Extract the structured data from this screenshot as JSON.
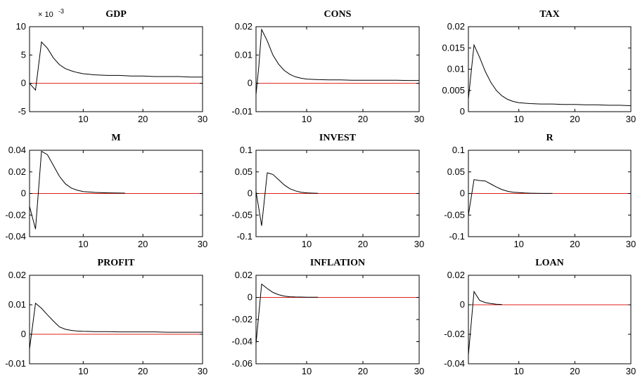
{
  "figure": {
    "colors": {
      "response": "#000000",
      "zero_line": "#e0211b",
      "axes": "#000000"
    }
  },
  "chart_data": [
    {
      "type": "line",
      "title": "GDP",
      "xlim": [
        1,
        30
      ],
      "ylim": [
        -0.005,
        0.01
      ],
      "xticks": [
        "10",
        "20",
        "30"
      ],
      "yticks": [
        "-5",
        "0",
        "5",
        "10"
      ],
      "y_exponent_label": "× 10",
      "y_exponent_power": "-3",
      "x_values": [
        1,
        2,
        3,
        4,
        5,
        6,
        7,
        8,
        9,
        10,
        12,
        14,
        16,
        18,
        20,
        22,
        24,
        26,
        28,
        30
      ],
      "series": [
        {
          "values": [
            0,
            -0.0012,
            0.0073,
            0.0062,
            0.0045,
            0.0033,
            0.0026,
            0.0022,
            0.0019,
            0.0017,
            0.0015,
            0.0014,
            0.0014,
            0.0013,
            0.0013,
            0.0012,
            0.0012,
            0.0012,
            0.0011,
            0.0011
          ]
        }
      ]
    },
    {
      "type": "line",
      "title": "CONS",
      "xlim": [
        1,
        30
      ],
      "ylim": [
        -0.01,
        0.02
      ],
      "xticks": [
        "10",
        "20",
        "30"
      ],
      "yticks": [
        "-0.01",
        "0",
        "0.01",
        "0.02"
      ],
      "x_values": [
        1,
        1.5,
        2,
        3,
        4,
        5,
        6,
        7,
        8,
        9,
        10,
        12,
        14,
        16,
        18,
        20,
        22,
        24,
        26,
        28,
        30
      ],
      "series": [
        {
          "values": [
            -0.004,
            0.006,
            0.019,
            0.015,
            0.01,
            0.0068,
            0.0046,
            0.0032,
            0.0023,
            0.0018,
            0.0015,
            0.0013,
            0.0012,
            0.0012,
            0.0011,
            0.0011,
            0.0011,
            0.0011,
            0.0011,
            0.001,
            0.001
          ]
        }
      ]
    },
    {
      "type": "line",
      "title": "TAX",
      "xlim": [
        1,
        30
      ],
      "ylim": [
        0,
        0.02
      ],
      "xticks": [
        "10",
        "20",
        "30"
      ],
      "yticks": [
        "0",
        "0.005",
        "0.01",
        "0.015",
        "0.02"
      ],
      "x_values": [
        1,
        2,
        3,
        4,
        5,
        6,
        7,
        8,
        9,
        10,
        12,
        14,
        16,
        18,
        20,
        22,
        24,
        26,
        28,
        30
      ],
      "series": [
        {
          "values": [
            0.003,
            0.0157,
            0.0128,
            0.0095,
            0.0069,
            0.005,
            0.0037,
            0.0029,
            0.0024,
            0.0021,
            0.0019,
            0.0018,
            0.0018,
            0.0017,
            0.0017,
            0.0016,
            0.0016,
            0.0015,
            0.0015,
            0.0014
          ]
        }
      ]
    },
    {
      "type": "line",
      "title": "M",
      "xlim": [
        1,
        30
      ],
      "ylim": [
        -0.04,
        0.04
      ],
      "xticks": [
        "10",
        "20",
        "30"
      ],
      "yticks": [
        "-0.04",
        "-0.02",
        "0",
        "0.02",
        "0.04"
      ],
      "x_values": [
        1,
        2,
        3,
        4,
        5,
        6,
        7,
        8,
        9,
        10,
        12,
        14,
        16,
        17
      ],
      "series": [
        {
          "values": [
            -0.012,
            -0.033,
            0.039,
            0.036,
            0.026,
            0.016,
            0.009,
            0.005,
            0.003,
            0.0018,
            0.001,
            0.0006,
            0.0004,
            0.0003
          ]
        }
      ]
    },
    {
      "type": "line",
      "title": "INVEST",
      "xlim": [
        1,
        30
      ],
      "ylim": [
        -0.1,
        0.1
      ],
      "xticks": [
        "10",
        "20",
        "30"
      ],
      "yticks": [
        "-0.1",
        "-0.05",
        "0",
        "0.05",
        "0.1"
      ],
      "x_values": [
        1,
        2,
        3,
        4,
        5,
        6,
        7,
        8,
        9,
        10,
        11,
        12
      ],
      "series": [
        {
          "values": [
            0.005,
            -0.075,
            0.048,
            0.044,
            0.032,
            0.02,
            0.011,
            0.006,
            0.003,
            0.0015,
            0.0008,
            0.0004
          ]
        }
      ]
    },
    {
      "type": "line",
      "title": "R",
      "xlim": [
        1,
        30
      ],
      "ylim": [
        -0.1,
        0.1
      ],
      "xticks": [
        "10",
        "20",
        "30"
      ],
      "yticks": [
        "-0.1",
        "-0.05",
        "0",
        "0.05",
        "0.1"
      ],
      "x_values": [
        1,
        2,
        3,
        4,
        5,
        6,
        7,
        8,
        9,
        10,
        11,
        12,
        14,
        16
      ],
      "series": [
        {
          "values": [
            -0.05,
            0.032,
            0.03,
            0.029,
            0.022,
            0.015,
            0.009,
            0.005,
            0.003,
            0.002,
            0.0012,
            0.0006,
            0.0002,
            0.0001
          ]
        }
      ]
    },
    {
      "type": "line",
      "title": "PROFIT",
      "xlim": [
        1,
        30
      ],
      "ylim": [
        -0.01,
        0.02
      ],
      "xticks": [
        "10",
        "20",
        "30"
      ],
      "yticks": [
        "-0.01",
        "0",
        "0.01",
        "0.02"
      ],
      "x_values": [
        1,
        2,
        3,
        4,
        5,
        6,
        7,
        8,
        9,
        10,
        12,
        14,
        16,
        18,
        20,
        22,
        24,
        26,
        28,
        30
      ],
      "series": [
        {
          "values": [
            -0.005,
            0.0105,
            0.0088,
            0.0066,
            0.0045,
            0.0025,
            0.0017,
            0.0013,
            0.0011,
            0.001,
            0.0009,
            0.0009,
            0.0008,
            0.0008,
            0.0008,
            0.0008,
            0.0007,
            0.0007,
            0.0007,
            0.0007
          ]
        }
      ]
    },
    {
      "type": "line",
      "title": "INFLATION",
      "xlim": [
        1,
        30
      ],
      "ylim": [
        -0.06,
        0.02
      ],
      "xticks": [
        "10",
        "20",
        "30"
      ],
      "yticks": [
        "-0.06",
        "-0.04",
        "-0.02",
        "0",
        "0.02"
      ],
      "x_values": [
        1,
        2,
        3,
        4,
        5,
        6,
        7,
        8,
        9,
        10,
        11,
        12
      ],
      "series": [
        {
          "values": [
            -0.042,
            0.012,
            0.008,
            0.0045,
            0.0025,
            0.0012,
            0.0006,
            0.0004,
            0.0003,
            0.0002,
            0.0001,
            0.0001
          ]
        }
      ]
    },
    {
      "type": "line",
      "title": "LOAN",
      "xlim": [
        1,
        30
      ],
      "ylim": [
        -0.04,
        0.02
      ],
      "xticks": [
        "10",
        "20",
        "30"
      ],
      "yticks": [
        "-0.04",
        "-0.02",
        "0",
        "0.02"
      ],
      "x_values": [
        1,
        2,
        3,
        4,
        5,
        6,
        7
      ],
      "series": [
        {
          "values": [
            -0.034,
            0.009,
            0.003,
            0.0015,
            0.0008,
            0.0004,
            0.0002
          ]
        }
      ]
    }
  ]
}
